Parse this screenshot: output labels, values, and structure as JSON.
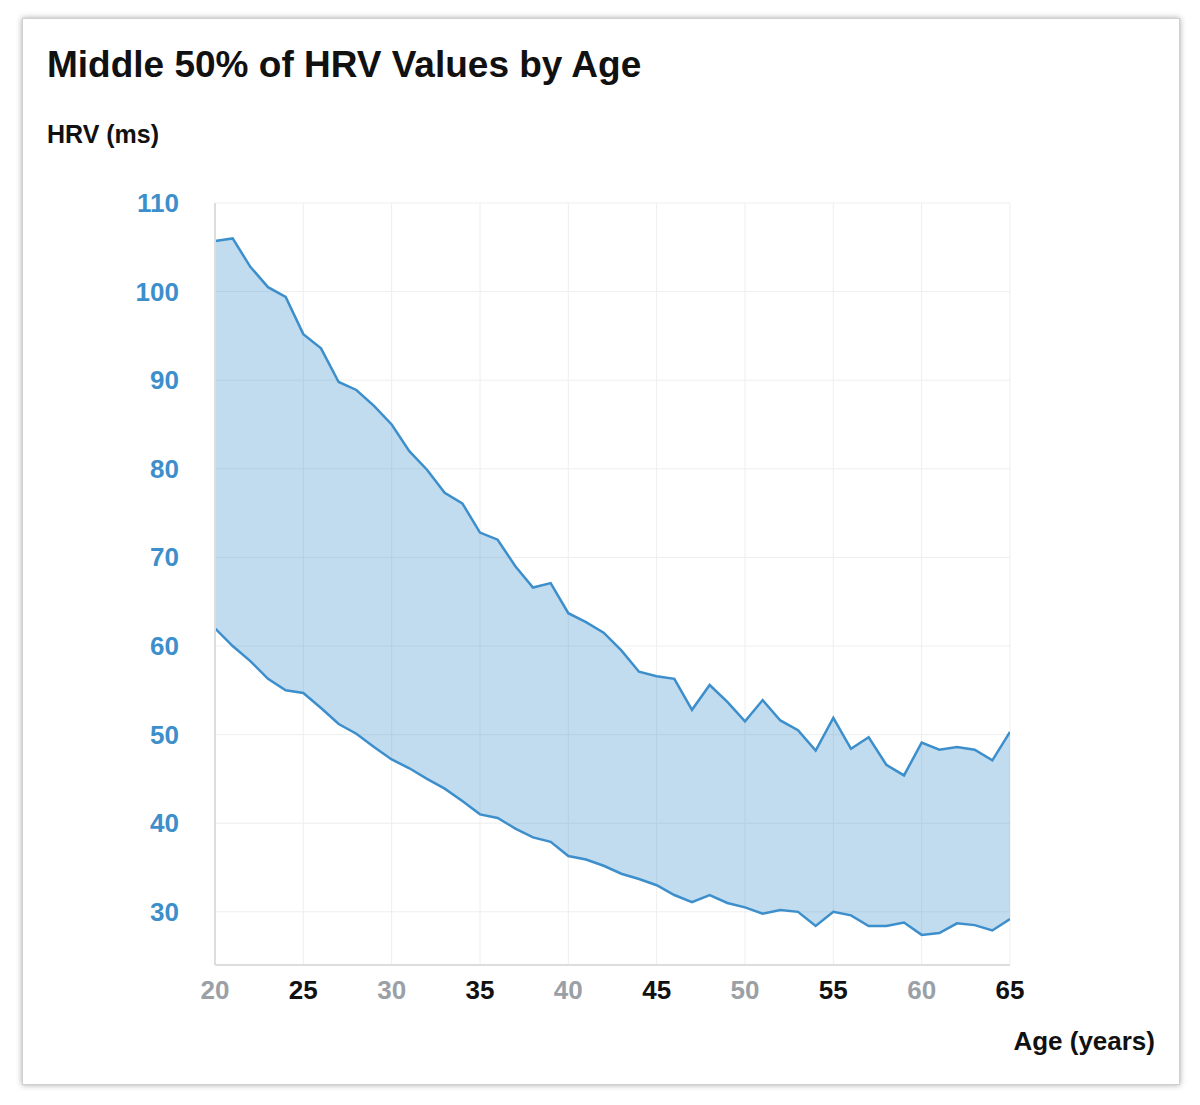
{
  "chart_data": {
    "type": "area",
    "title": "Middle 50% of HRV Values by Age",
    "y_label": "HRV (ms)",
    "x_label": "Age (years)",
    "x": [
      20,
      21,
      22,
      23,
      24,
      25,
      26,
      27,
      28,
      29,
      30,
      31,
      32,
      33,
      34,
      35,
      36,
      37,
      38,
      39,
      40,
      41,
      42,
      43,
      44,
      45,
      46,
      47,
      48,
      49,
      50,
      51,
      52,
      53,
      54,
      55,
      56,
      57,
      58,
      59,
      60,
      61,
      62,
      63,
      64,
      65
    ],
    "low": [
      62,
      60,
      58.3,
      56.3,
      55,
      54.7,
      53,
      51.2,
      50.1,
      48.6,
      47.2,
      46.2,
      45,
      43.9,
      42.5,
      41,
      40.6,
      39.4,
      38.4,
      37.9,
      36.3,
      35.9,
      35.2,
      34.3,
      33.7,
      33,
      31.9,
      31.1,
      31.9,
      31,
      30.5,
      29.8,
      30.2,
      30,
      28.4,
      30,
      29.6,
      28.4,
      28.4,
      28.8,
      27.4,
      27.6,
      28.7,
      28.5,
      27.9,
      29.2
    ],
    "high": [
      105.7,
      106,
      102.8,
      100.5,
      99.4,
      95.2,
      93.6,
      89.8,
      88.9,
      87.1,
      85,
      82,
      79.9,
      77.3,
      76.1,
      72.8,
      72,
      69,
      66.6,
      67.1,
      63.7,
      62.7,
      61.5,
      59.5,
      57.1,
      56.6,
      56.3,
      52.8,
      55.6,
      53.7,
      51.5,
      53.9,
      51.6,
      50.5,
      48.2,
      51.9,
      48.4,
      49.7,
      46.6,
      45.4,
      49.1,
      48.3,
      48.6,
      48.3,
      47.1,
      50.3
    ],
    "color": "#3d8fcc",
    "xlim": [
      20,
      65
    ],
    "xticks": [
      20,
      25,
      30,
      35,
      40,
      45,
      50,
      55,
      60,
      65
    ],
    "ylim": [
      24,
      110
    ],
    "yticks": [
      30,
      40,
      50,
      60,
      70,
      80,
      90,
      100,
      110
    ],
    "grid": true
  }
}
